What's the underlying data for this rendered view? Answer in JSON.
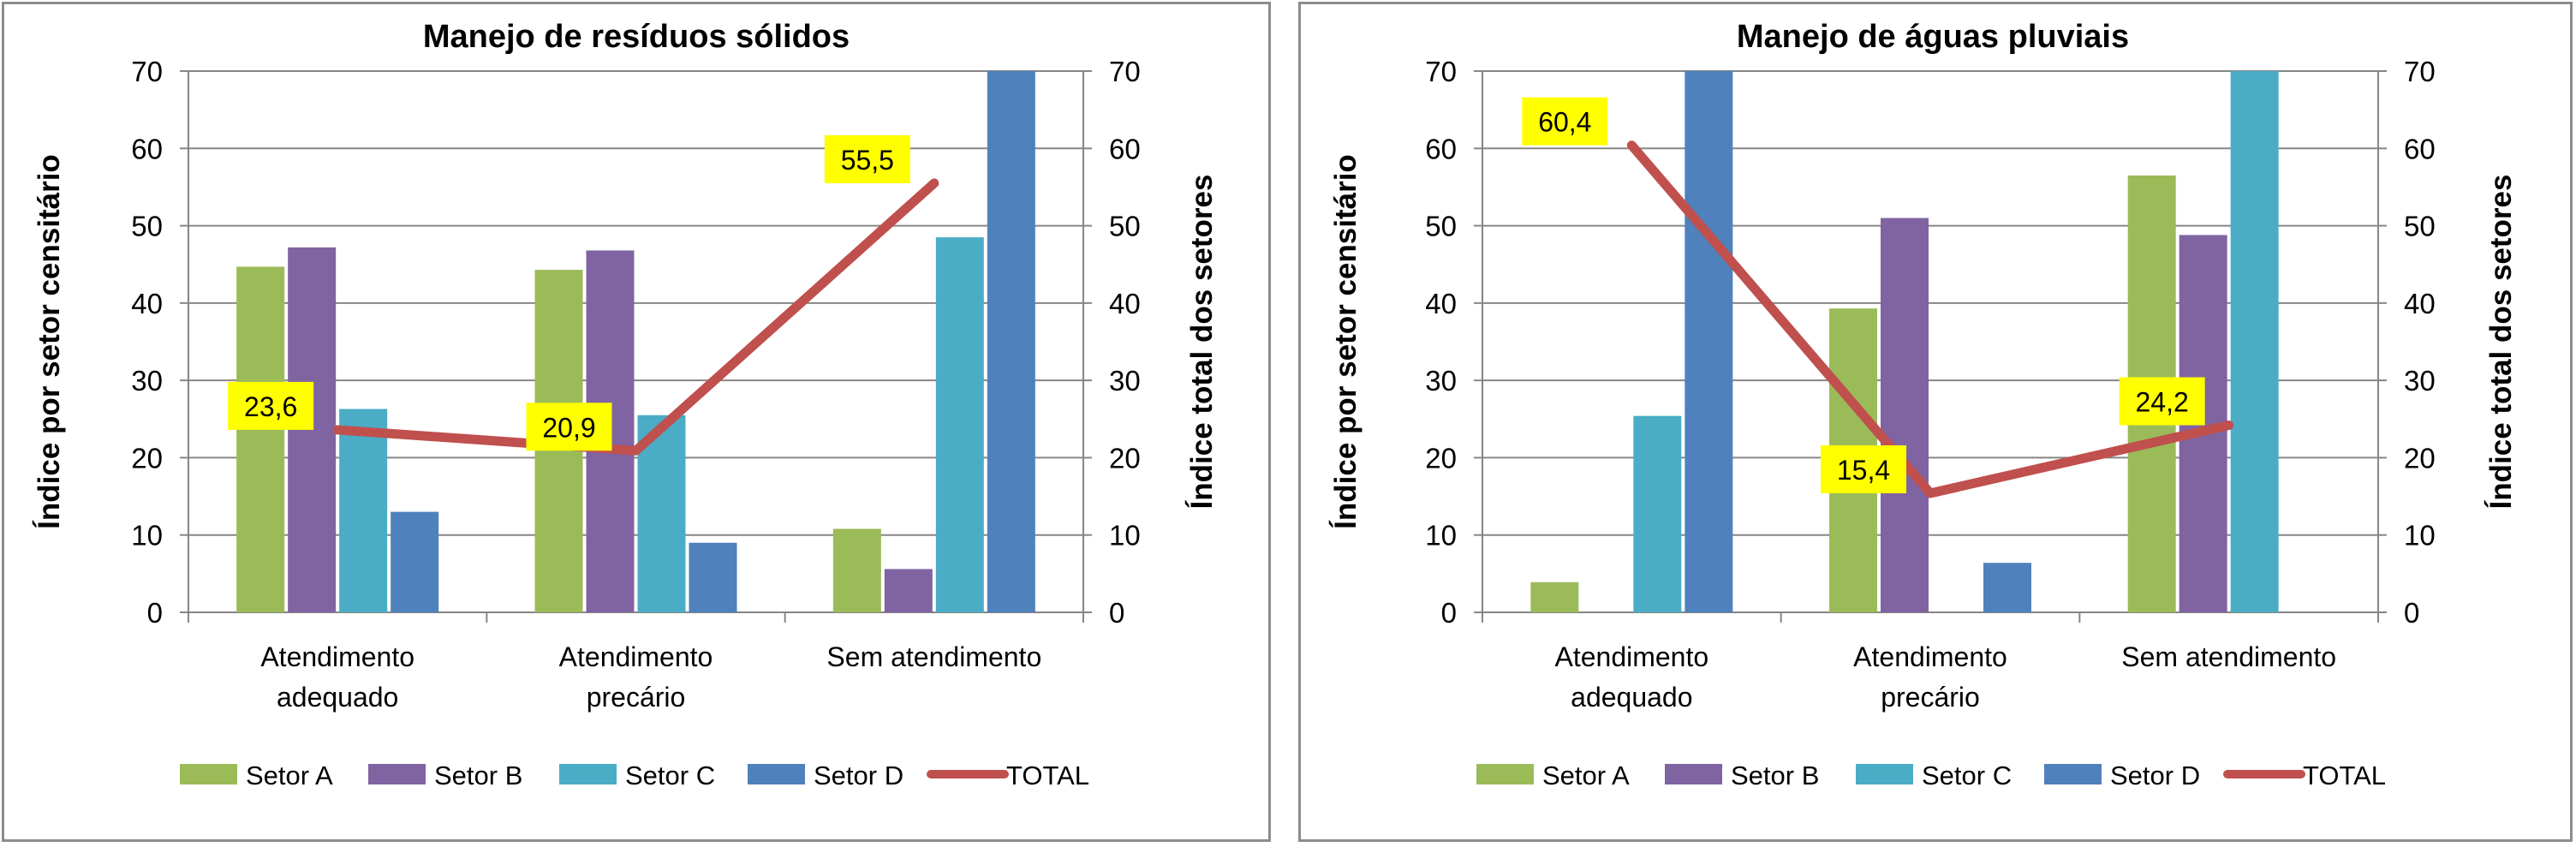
{
  "chart_data": [
    {
      "type": "bar",
      "title": "Manejo de resíduos sólidos",
      "categories": [
        [
          "Atendimento",
          "adequado"
        ],
        [
          "Atendimento",
          "precário"
        ],
        [
          "Sem atendimento"
        ]
      ],
      "ylabel": "Índice por setor censitário",
      "y2label": "Índice total dos setores",
      "ylim": [
        0,
        70
      ],
      "y2lim": [
        0,
        70
      ],
      "yticks": [
        "0",
        "10",
        "20",
        "30",
        "40",
        "50",
        "60",
        "70"
      ],
      "y2ticks": [
        "0",
        "10",
        "20",
        "30",
        "40",
        "50",
        "60",
        "70"
      ],
      "grid": true,
      "legend": "bottom",
      "series": [
        {
          "name": "Setor A",
          "type": "bar",
          "color": "#9BBB59",
          "values": [
            44.7,
            44.3,
            10.8
          ]
        },
        {
          "name": "Setor B",
          "type": "bar",
          "color": "#8064A2",
          "values": [
            47.2,
            46.8,
            5.6
          ]
        },
        {
          "name": "Setor C",
          "type": "bar",
          "color": "#4BACC6",
          "values": [
            26.3,
            25.5,
            48.5
          ]
        },
        {
          "name": "Setor D",
          "type": "bar",
          "color": "#4F81BD",
          "values": [
            13.0,
            9.0,
            70.0
          ]
        },
        {
          "name": "TOTAL",
          "type": "line",
          "axis": "right",
          "color": "#C0504D",
          "values": [
            23.6,
            20.9,
            55.5
          ],
          "labels": [
            "23,6",
            "20,9",
            "55,5"
          ]
        }
      ]
    },
    {
      "type": "bar",
      "title": "Manejo de águas pluviais",
      "categories": [
        [
          "Atendimento",
          "adequado"
        ],
        [
          "Atendimento",
          "precário"
        ],
        [
          "Sem atendimento"
        ]
      ],
      "ylabel": "Índice por setor censitário",
      "y2label": "Índice total dos setores",
      "ylim": [
        0,
        70
      ],
      "y2lim": [
        0,
        70
      ],
      "yticks": [
        "0",
        "10",
        "20",
        "30",
        "40",
        "50",
        "60",
        "70"
      ],
      "y2ticks": [
        "0",
        "10",
        "20",
        "30",
        "40",
        "50",
        "60",
        "70"
      ],
      "grid": true,
      "legend": "bottom",
      "series": [
        {
          "name": "Setor A",
          "type": "bar",
          "color": "#9BBB59",
          "values": [
            3.9,
            39.3,
            56.5
          ]
        },
        {
          "name": "Setor B",
          "type": "bar",
          "color": "#8064A2",
          "values": [
            0,
            51.0,
            48.8
          ]
        },
        {
          "name": "Setor C",
          "type": "bar",
          "color": "#4BACC6",
          "values": [
            25.4,
            0,
            70.0
          ]
        },
        {
          "name": "Setor D",
          "type": "bar",
          "color": "#4F81BD",
          "values": [
            70.0,
            6.4,
            0
          ]
        },
        {
          "name": "TOTAL",
          "type": "line",
          "axis": "right",
          "color": "#C0504D",
          "values": [
            60.4,
            15.4,
            24.2
          ],
          "labels": [
            "60,4",
            "15,4",
            "24,2"
          ]
        }
      ]
    }
  ]
}
